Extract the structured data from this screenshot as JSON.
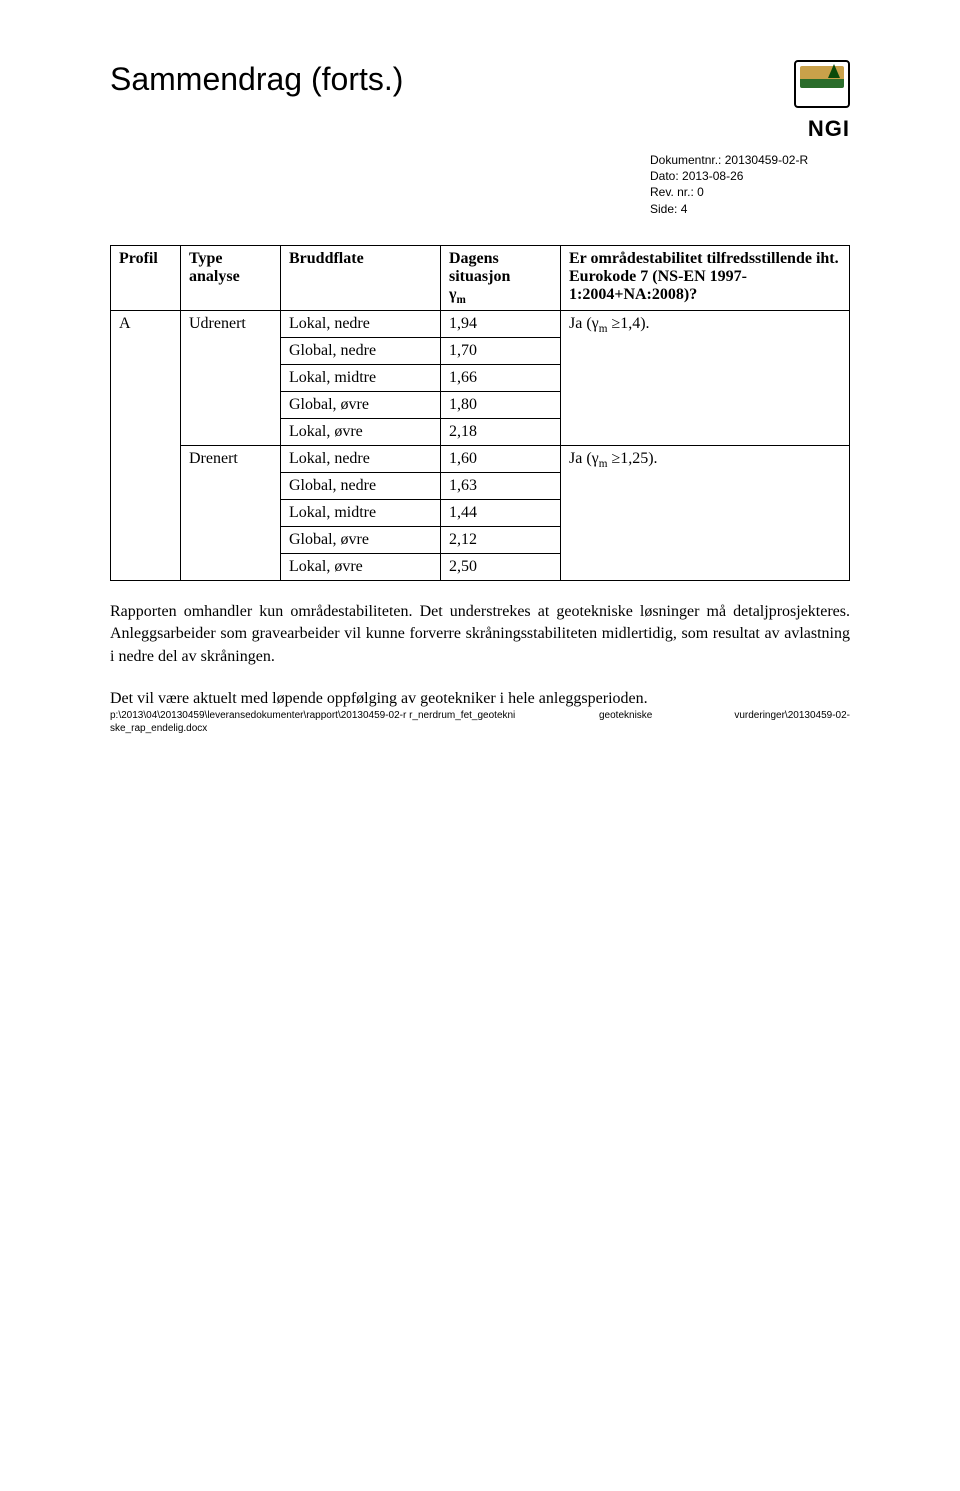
{
  "page": {
    "title": "Sammendrag (forts.)",
    "logo_text": "NGI",
    "meta": {
      "doc_label": "Dokumentnr.:",
      "doc_value": "20130459-02-R",
      "date_label": "Dato:",
      "date_value": "2013-08-26",
      "rev_label": "Rev. nr.:",
      "rev_value": "0",
      "side_label": "Side:",
      "side_value": "4"
    }
  },
  "table": {
    "headers": {
      "profil": "Profil",
      "type": "Type analyse",
      "bruddflate": "Bruddflate",
      "dagens_line1": "Dagens situasjon",
      "dagens_sym": "γ",
      "dagens_sub": "m",
      "er": "Er områdestabilitet tilfredsstillende iht. Eurokode 7 (NS-EN 1997-1:2004+NA:2008)?"
    },
    "profilA": "A",
    "udrenert": {
      "label": "Udrenert",
      "rows": [
        {
          "flate": "Lokal, nedre",
          "val": "1,94"
        },
        {
          "flate": "Global, nedre",
          "val": "1,70"
        },
        {
          "flate": "Lokal, midtre",
          "val": "1,66"
        },
        {
          "flate": "Global, øvre",
          "val": "1,80"
        },
        {
          "flate": "Lokal, øvre",
          "val": "2,18"
        }
      ],
      "verdict_prefix": "Ja (",
      "verdict_sym": "γ",
      "verdict_sub": "m",
      "verdict_suffix": " ≥1,4)."
    },
    "drenert": {
      "label": "Drenert",
      "rows": [
        {
          "flate": "Lokal, nedre",
          "val": "1,60"
        },
        {
          "flate": "Global, nedre",
          "val": "1,63"
        },
        {
          "flate": "Lokal, midtre",
          "val": "1,44"
        },
        {
          "flate": "Global, øvre",
          "val": "2,12"
        },
        {
          "flate": "Lokal, øvre",
          "val": "2,50"
        }
      ],
      "verdict_prefix": "Ja (",
      "verdict_sym": "γ",
      "verdict_sub": "m",
      "verdict_suffix": " ≥1,25)."
    }
  },
  "paragraphs": {
    "p1": "Rapporten omhandler kun områdestabiliteten. Det understrekes at geotekniske løsninger må detaljprosjekteres. Anleggsarbeider som gravearbeider vil kunne forverre skråningsstabiliteten midlertidig, som resultat av avlastning i nedre del av skråningen.",
    "p2": "Det vil være aktuelt med løpende oppfølging av geotekniker i hele anleggsperioden."
  },
  "footer": {
    "left": "p:\\2013\\04\\20130459\\leveransedokumenter\\rapport\\20130459-02-r r_nerdrum_fet_geotekniske_rap_endelig.docx",
    "center": "geotekniske",
    "right": "vurderinger\\20130459-02-"
  },
  "colors": {
    "text": "#000000",
    "background": "#ffffff",
    "border": "#000000"
  }
}
